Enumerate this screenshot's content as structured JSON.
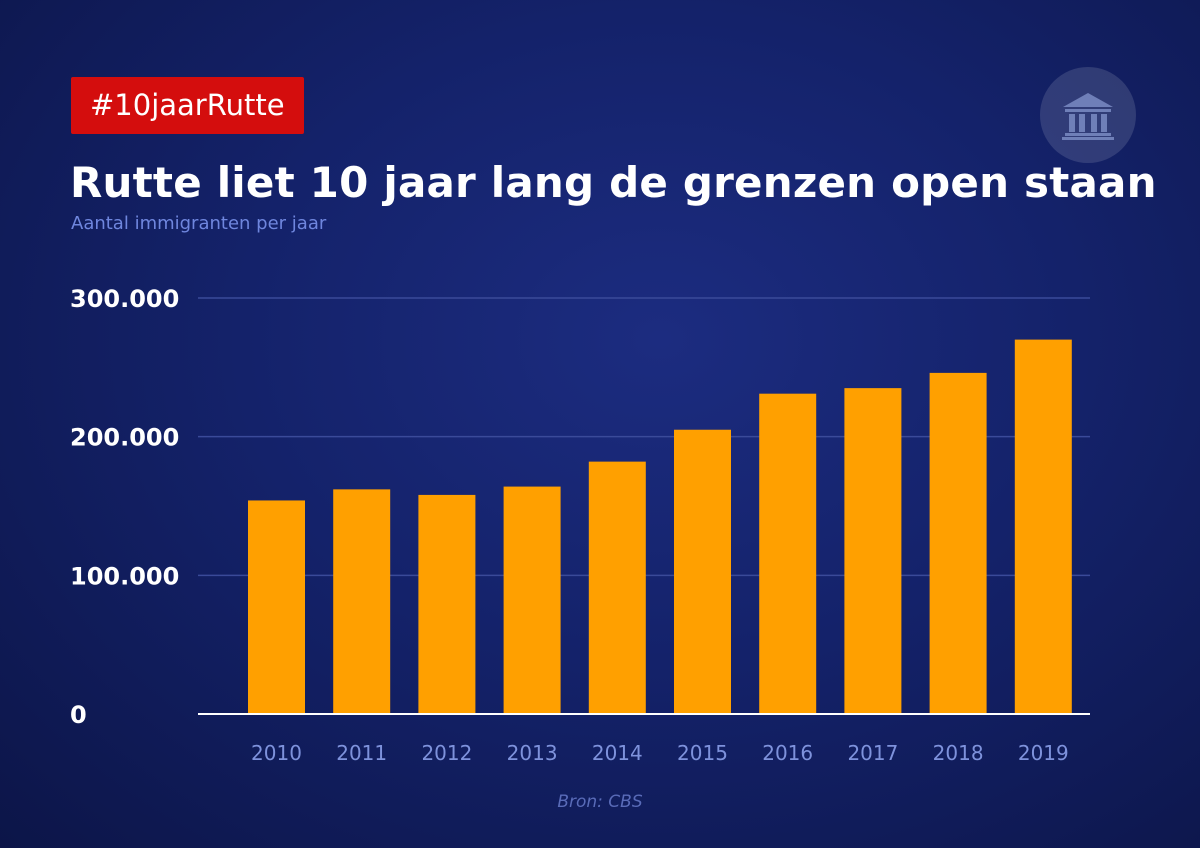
{
  "hashtag": "#10jaarRutte",
  "logo_icon": "government-building-icon",
  "source": "Bron: CBS",
  "colors": {
    "bar": "#ffa000",
    "tag": "#d40d0d",
    "background": "#14226a"
  },
  "chart_data": {
    "type": "bar",
    "title": "Rutte liet 10 jaar lang de grenzen open staan",
    "subtitle": "Aantal immigranten per jaar",
    "xlabel": "",
    "ylabel": "",
    "categories": [
      "2010",
      "2011",
      "2012",
      "2013",
      "2014",
      "2015",
      "2016",
      "2017",
      "2018",
      "2019"
    ],
    "values": [
      154000,
      162000,
      158000,
      164000,
      182000,
      205000,
      231000,
      235000,
      246000,
      270000
    ],
    "ylim": [
      0,
      300000
    ],
    "yticks": [
      0,
      100000,
      200000,
      300000
    ],
    "ytick_labels": [
      "0",
      "100.000",
      "200.000",
      "300.000"
    ],
    "grid": true,
    "legend": "none"
  }
}
